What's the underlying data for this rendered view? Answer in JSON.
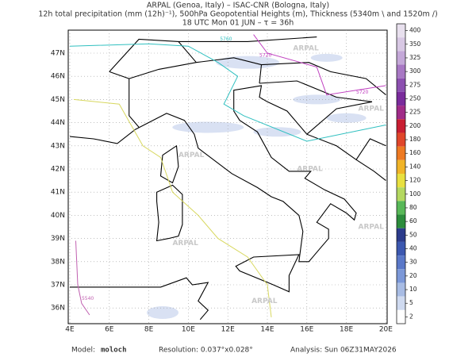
{
  "header": {
    "lines": [
      "ARPAL (Genoa, Italy)  –  ISAC-CNR (Bologna, Italy)",
      "12h total precipitation (mm (12h)⁻¹), 500hPa Geopotential Heights (m), Thickness (5340m \\ and 1520m /)",
      "18 UTC Mon 01 JUN  –  τ = 36h"
    ]
  },
  "map": {
    "lat_labels": [
      "47N",
      "46N",
      "45N",
      "44N",
      "43N",
      "42N",
      "41N",
      "40N",
      "39N",
      "38N",
      "37N",
      "36N"
    ],
    "lon_labels": [
      "4E",
      "6E",
      "8E",
      "10E",
      "12E",
      "14E",
      "16E",
      "18E",
      "20E"
    ],
    "contour_labels": [
      "5760",
      "5720",
      "5720",
      "5540"
    ],
    "watermark": "ARPAL"
  },
  "colorbar": {
    "levels": [
      400,
      350,
      325,
      300,
      275,
      250,
      225,
      200,
      180,
      160,
      140,
      120,
      100,
      80,
      60,
      50,
      40,
      30,
      20,
      10,
      5,
      2
    ],
    "colors": [
      "#e8e0ee",
      "#d8c8e4",
      "#c4a8d8",
      "#a878c4",
      "#8c50b0",
      "#7a2c9c",
      "#a02c88",
      "#c81e32",
      "#e0462a",
      "#ee7a22",
      "#f0b428",
      "#e8e040",
      "#b4d860",
      "#58b858",
      "#2c8c3c",
      "#2c3c8c",
      "#3c58b0",
      "#5a78c8",
      "#7c98d8",
      "#a8bce4",
      "#cfdaf0",
      "#ffffff"
    ]
  },
  "footer": {
    "model_label": "Model:",
    "model": "moloch",
    "resolution": "Resolution: 0.037°x0.028°",
    "analysis": "Analysis: Sun 06Z31MAY2026"
  }
}
